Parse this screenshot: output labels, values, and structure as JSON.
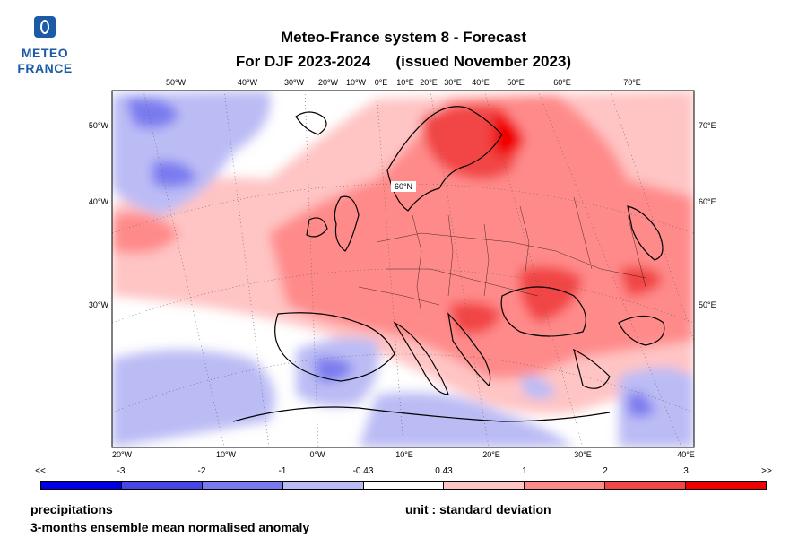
{
  "logo": {
    "line1": "METEO",
    "line2": "FRANCE",
    "color": "#1b5aa6"
  },
  "title": {
    "line1": "Meteo-France system 8  -  Forecast",
    "line2": "For DJF 2023-2024      (issued November 2023)"
  },
  "map": {
    "top_ticks": [
      "50°W",
      "40°W",
      "30°W",
      "20°W",
      "10°W",
      "0°E",
      "10°E",
      "20°E",
      "30°E",
      "40°E",
      "50°E",
      "60°E",
      "70°E"
    ],
    "left_ticks": [
      "50°W",
      "40°W",
      "30°W"
    ],
    "right_ticks": [
      "70°E",
      "60°E",
      "50°E"
    ],
    "bottom_ticks": [
      "20°W",
      "10°W",
      "0°W",
      "10°E",
      "20°E",
      "30°E",
      "40°E"
    ],
    "lat_label": "60°N"
  },
  "legend": {
    "labels": [
      "<<",
      "-3",
      "-2",
      "-1",
      "-0.43",
      "0.43",
      "1",
      "2",
      "3",
      ">>"
    ],
    "colors": [
      "#0000e6",
      "#4646e6",
      "#7a7af0",
      "#bcbcf5",
      "#ffffff",
      "#ffc4c4",
      "#ff8a8a",
      "#f24545",
      "#f20000"
    ]
  },
  "footer": {
    "variable": "precipitations",
    "description": "3-months ensemble mean normalised anomaly",
    "unit": "unit : standard deviation"
  }
}
